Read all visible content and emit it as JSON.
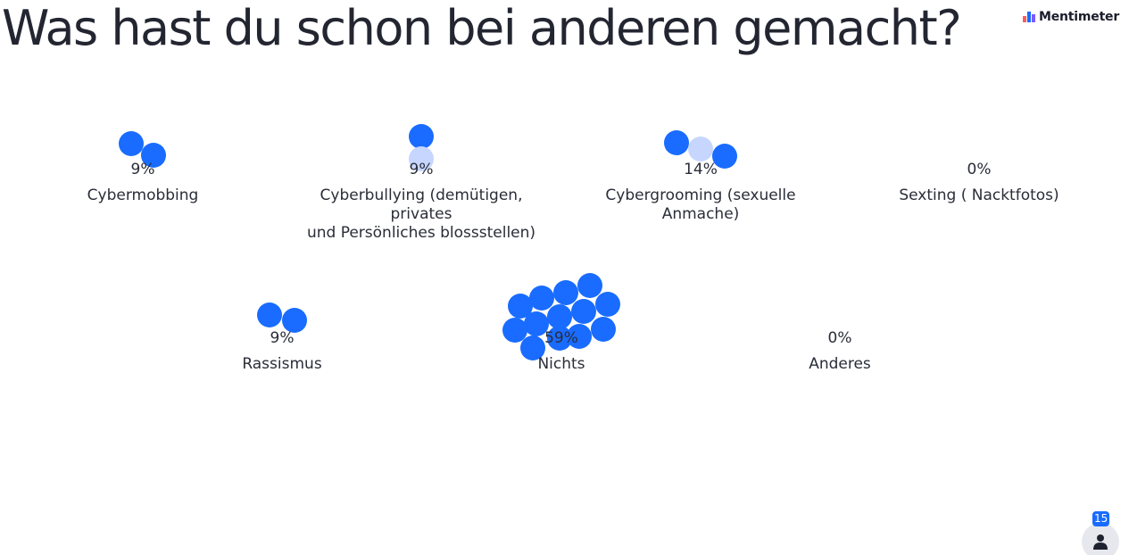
{
  "title": "Was hast du schon bei anderen gemacht?",
  "brand": {
    "name": "Mentimeter",
    "logo_colors": [
      "#ff5a5f",
      "#196cff",
      "#7a5cff"
    ]
  },
  "colors": {
    "dot": "#196cff",
    "dot_faded": "#c6d6ff",
    "text": "#2a2d38"
  },
  "chart_data": {
    "type": "bubble-count",
    "categories": [
      "Cybermobbing",
      "Cyberbullying (demütigen, privates und Persönliches blossstellen)",
      "Cybergrooming (sexuelle Anmache)",
      "Sexting ( Nacktfotos)",
      "Rassismus",
      "Nichts",
      "Anderes"
    ],
    "values_percent": [
      9,
      9,
      14,
      0,
      9,
      59,
      0
    ],
    "value_labels": [
      "9%",
      "9%",
      "14%",
      "0%",
      "9%",
      "59%",
      "0%"
    ],
    "counts": [
      2,
      2,
      3,
      0,
      2,
      13,
      0
    ]
  },
  "options": [
    {
      "label": "Cybermobbing",
      "pct": "9%"
    },
    {
      "label": "Cyberbullying (demütigen, privates\nund Persönliches blossstellen)",
      "pct": "9%"
    },
    {
      "label": "Cybergrooming (sexuelle Anmache)",
      "pct": "14%"
    },
    {
      "label": "Sexting ( Nacktfotos)",
      "pct": "0%"
    },
    {
      "label": "Rassismus",
      "pct": "9%"
    },
    {
      "label": "Nichts",
      "pct": "59%"
    },
    {
      "label": "Anderes",
      "pct": "0%"
    }
  ],
  "participants": {
    "count": "15",
    "icon": "person-icon"
  }
}
